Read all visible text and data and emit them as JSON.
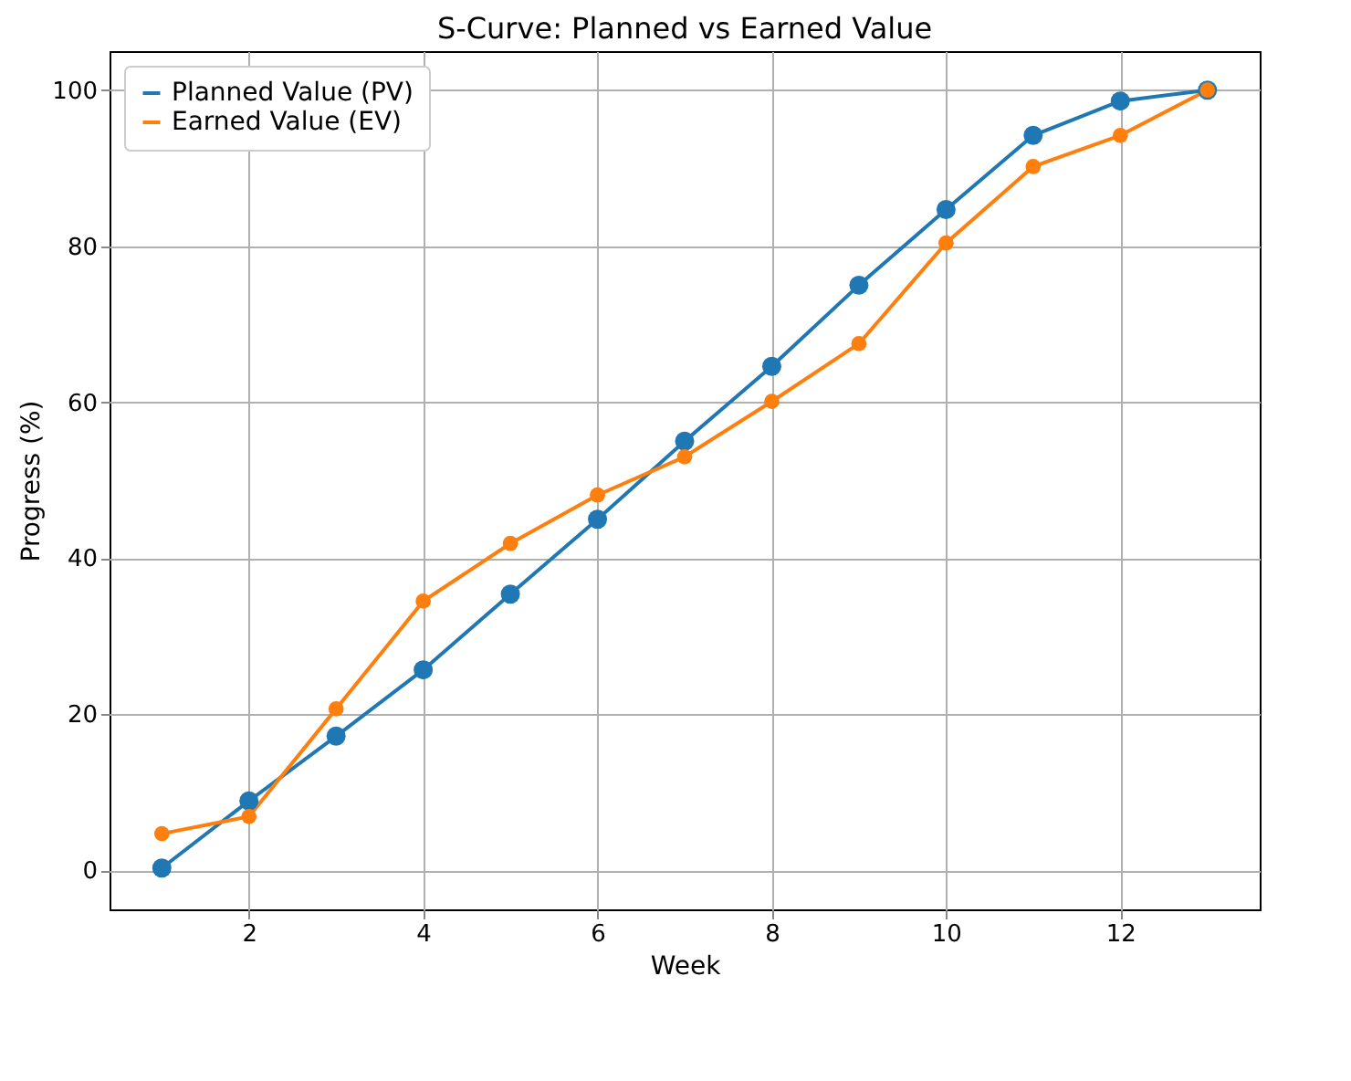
{
  "chart_data": {
    "type": "line",
    "title": "S-Curve: Planned vs Earned Value",
    "xlabel": "Week",
    "ylabel": "Progress (%)",
    "x": [
      1,
      2,
      3,
      4,
      5,
      6,
      7,
      8,
      9,
      10,
      11,
      12,
      13
    ],
    "series": [
      {
        "name": "Planned Value (PV)",
        "color": "#1f77b4",
        "values": [
          0.3,
          8.9,
          17.2,
          25.7,
          35.4,
          45,
          55,
          64.6,
          75,
          84.7,
          94.2,
          98.6,
          100
        ]
      },
      {
        "name": "Earned Value (EV)",
        "color": "#ff7f0e",
        "values": [
          4.7,
          6.9,
          20.7,
          34.5,
          41.9,
          48.1,
          53,
          60.1,
          67.5,
          80.4,
          90.2,
          94.2,
          100
        ]
      }
    ],
    "xlim": [
      0.4,
      13.6
    ],
    "xticks": [
      2,
      4,
      6,
      8,
      10,
      12
    ],
    "ylim": [
      -5,
      105
    ],
    "yticks": [
      0,
      20,
      40,
      60,
      80,
      100
    ],
    "grid": true,
    "legend": "top left",
    "marker": "circle",
    "line_style": "solid"
  }
}
